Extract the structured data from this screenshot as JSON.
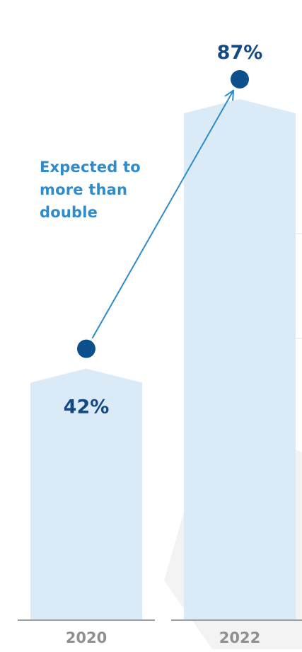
{
  "colors": {
    "bar_fill": "#dbeaf7",
    "marker": "#0d4f8b",
    "value_label": "#134a84",
    "annotation": "#2f8bc9",
    "axis_line": "#9e9e9e",
    "tick_label": "#8f8f8f",
    "background_shape": "#f3f3f3"
  },
  "annotation": {
    "lines": [
      "Expected to",
      "more than",
      "double"
    ]
  },
  "chart_data": {
    "type": "bar",
    "categories": [
      "2020",
      "2022"
    ],
    "values": [
      42,
      87
    ],
    "value_labels": [
      "42%",
      "87%"
    ],
    "ylim": [
      0,
      100
    ],
    "grid": false,
    "legend": "none"
  }
}
